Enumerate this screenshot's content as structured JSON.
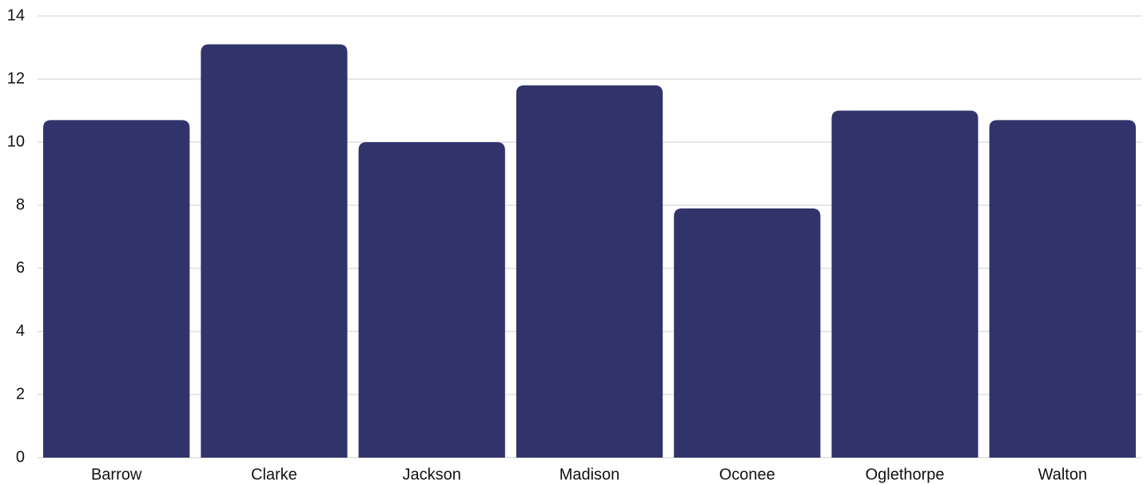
{
  "chart_data": {
    "type": "bar",
    "categories": [
      "Barrow",
      "Clarke",
      "Jackson",
      "Madison",
      "Oconee",
      "Oglethorpe",
      "Walton"
    ],
    "values": [
      10.7,
      13.1,
      10.0,
      11.8,
      7.9,
      11.0,
      10.7
    ],
    "color": "#31346b",
    "ylim": [
      0,
      14
    ],
    "yticks": [
      0,
      2,
      4,
      6,
      8,
      10,
      12,
      14
    ],
    "grid": true
  }
}
